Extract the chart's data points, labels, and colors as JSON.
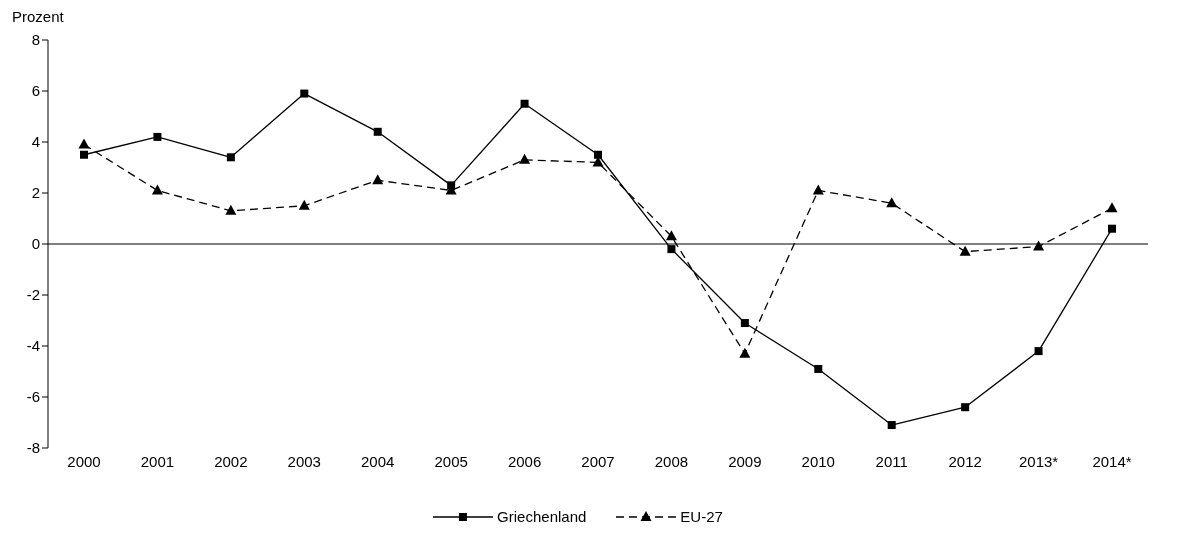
{
  "chart_data": {
    "type": "line",
    "ylabel": "Prozent",
    "categories": [
      "2000",
      "2001",
      "2002",
      "2003",
      "2004",
      "2005",
      "2006",
      "2007",
      "2008",
      "2009",
      "2010",
      "2011",
      "2012",
      "2013*",
      "2014*"
    ],
    "series": [
      {
        "name": "Griechenland",
        "color": "#000000",
        "marker": "square",
        "line_style": "solid",
        "values": [
          3.5,
          4.2,
          3.4,
          5.9,
          4.4,
          2.3,
          5.5,
          3.5,
          -0.2,
          -3.1,
          -4.9,
          -7.1,
          -6.4,
          -4.2,
          0.6
        ]
      },
      {
        "name": "EU-27",
        "color": "#000000",
        "marker": "triangle",
        "line_style": "dashed",
        "values": [
          3.9,
          2.1,
          1.3,
          1.5,
          2.5,
          2.1,
          3.3,
          3.2,
          0.3,
          -4.3,
          2.1,
          1.6,
          -0.3,
          -0.1,
          1.4
        ]
      }
    ],
    "ylim": [
      -8,
      8
    ],
    "yticks": [
      -8,
      -6,
      -4,
      -2,
      0,
      2,
      4,
      6,
      8
    ],
    "legend": "bottom"
  }
}
